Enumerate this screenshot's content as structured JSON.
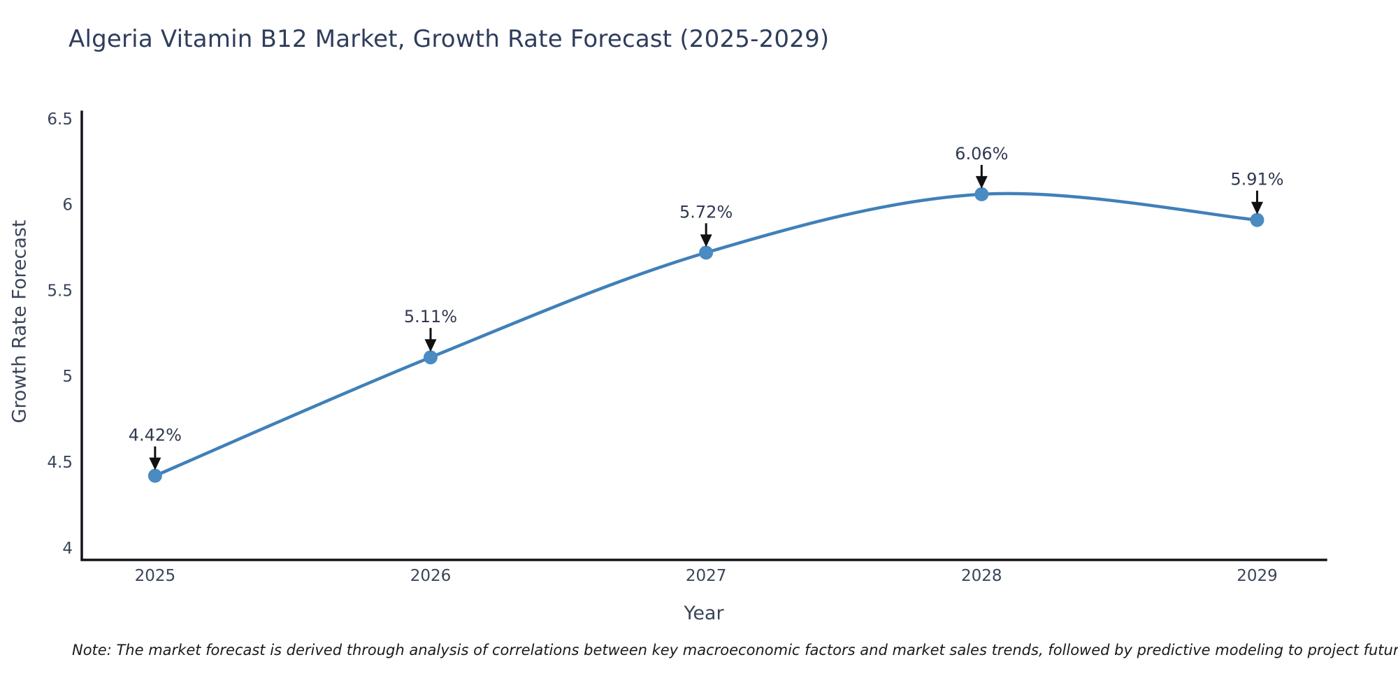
{
  "title": "Algeria Vitamin B12 Market, Growth Rate Forecast (2025-2029)",
  "note": "Note: The market forecast is derived through analysis of correlations between key macroeconomic factors and market sales trends, followed by predictive modeling to project future sales",
  "chart_data": {
    "type": "line",
    "title": "Algeria Vitamin B12 Market, Growth Rate Forecast (2025-2029)",
    "xlabel": "Year",
    "ylabel": "Growth Rate Forecast",
    "x": [
      2025,
      2026,
      2027,
      2028,
      2029
    ],
    "series": [
      {
        "name": "Growth Rate Forecast",
        "values": [
          4.42,
          5.11,
          5.72,
          6.06,
          5.91
        ]
      }
    ],
    "point_labels": [
      "4.42%",
      "5.11%",
      "5.72%",
      "6.06%",
      "5.91%"
    ],
    "y_ticks": [
      4,
      4.5,
      5,
      5.5,
      6,
      6.5
    ],
    "ylim": [
      3.93,
      6.54
    ],
    "xlim": [
      2024.734,
      2029.25
    ],
    "grid": false,
    "legend_position": "none",
    "line_shape": "spline",
    "colors": {
      "line": "#4080b8",
      "marker": "#4a8bc2",
      "axis": "#111319",
      "tick_text": "#3b4559",
      "annotation_text": "#30394f",
      "arrow": "#111111",
      "title_text": "#2f3d5c"
    }
  }
}
